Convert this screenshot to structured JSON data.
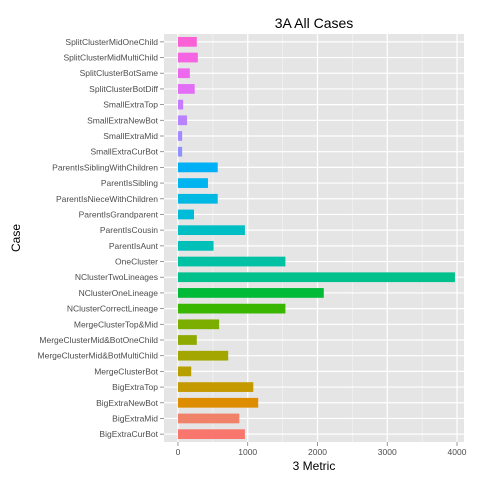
{
  "chart_data": {
    "type": "bar",
    "orientation": "horizontal",
    "title": "3A All Cases",
    "xlabel": "3 Metric",
    "ylabel": "Case",
    "xlim": [
      -200,
      4100
    ],
    "x_ticks": [
      0,
      1000,
      2000,
      3000,
      4000
    ],
    "grid": true,
    "panel_background": "#e5e5e5",
    "grid_color": "#ffffff",
    "legend": "none",
    "categories": [
      "SplitClusterMidOneChild",
      "SplitClusterMidMultiChild",
      "SplitClusterBotSame",
      "SplitClusterBotDiff",
      "SmallExtraTop",
      "SmallExtraNewBot",
      "SmallExtraMid",
      "SmallExtraCurBot",
      "ParentIsSiblingWithChildren",
      "ParentIsSibling",
      "ParentIsNieceWithChildren",
      "ParentIsGrandparent",
      "ParentIsCousin",
      "ParentIsAunt",
      "OneCluster",
      "NClusterTwoLineages",
      "NClusterOneLineage",
      "NClusterCorrectLineage",
      "MergeClusterTop&Mid",
      "MergeClusterMid&BotOneChild",
      "MergeClusterMid&BotMultiChild",
      "MergeClusterBot",
      "BigExtraTop",
      "BigExtraNewBot",
      "BigExtraMid",
      "BigExtraCurBot"
    ],
    "values": [
      270,
      285,
      170,
      240,
      75,
      130,
      60,
      60,
      570,
      430,
      570,
      230,
      960,
      510,
      1540,
      3970,
      2090,
      1540,
      590,
      270,
      720,
      190,
      1080,
      1150,
      880,
      960
    ],
    "colors": [
      "#fb61d7",
      "#f564e3",
      "#ed68ed",
      "#e36ef6",
      "#c77cff",
      "#b983ff",
      "#a58aff",
      "#8f91ff",
      "#00b0f6",
      "#00b4ef",
      "#00b9e3",
      "#00bcd8",
      "#00bfc4",
      "#00c0b8",
      "#00c1a3",
      "#00c08b",
      "#00ba38",
      "#39b600",
      "#7cae00",
      "#8ea900",
      "#a3a500",
      "#b79f00",
      "#c49a00",
      "#de8c00",
      "#f08269",
      "#f8766d"
    ]
  }
}
